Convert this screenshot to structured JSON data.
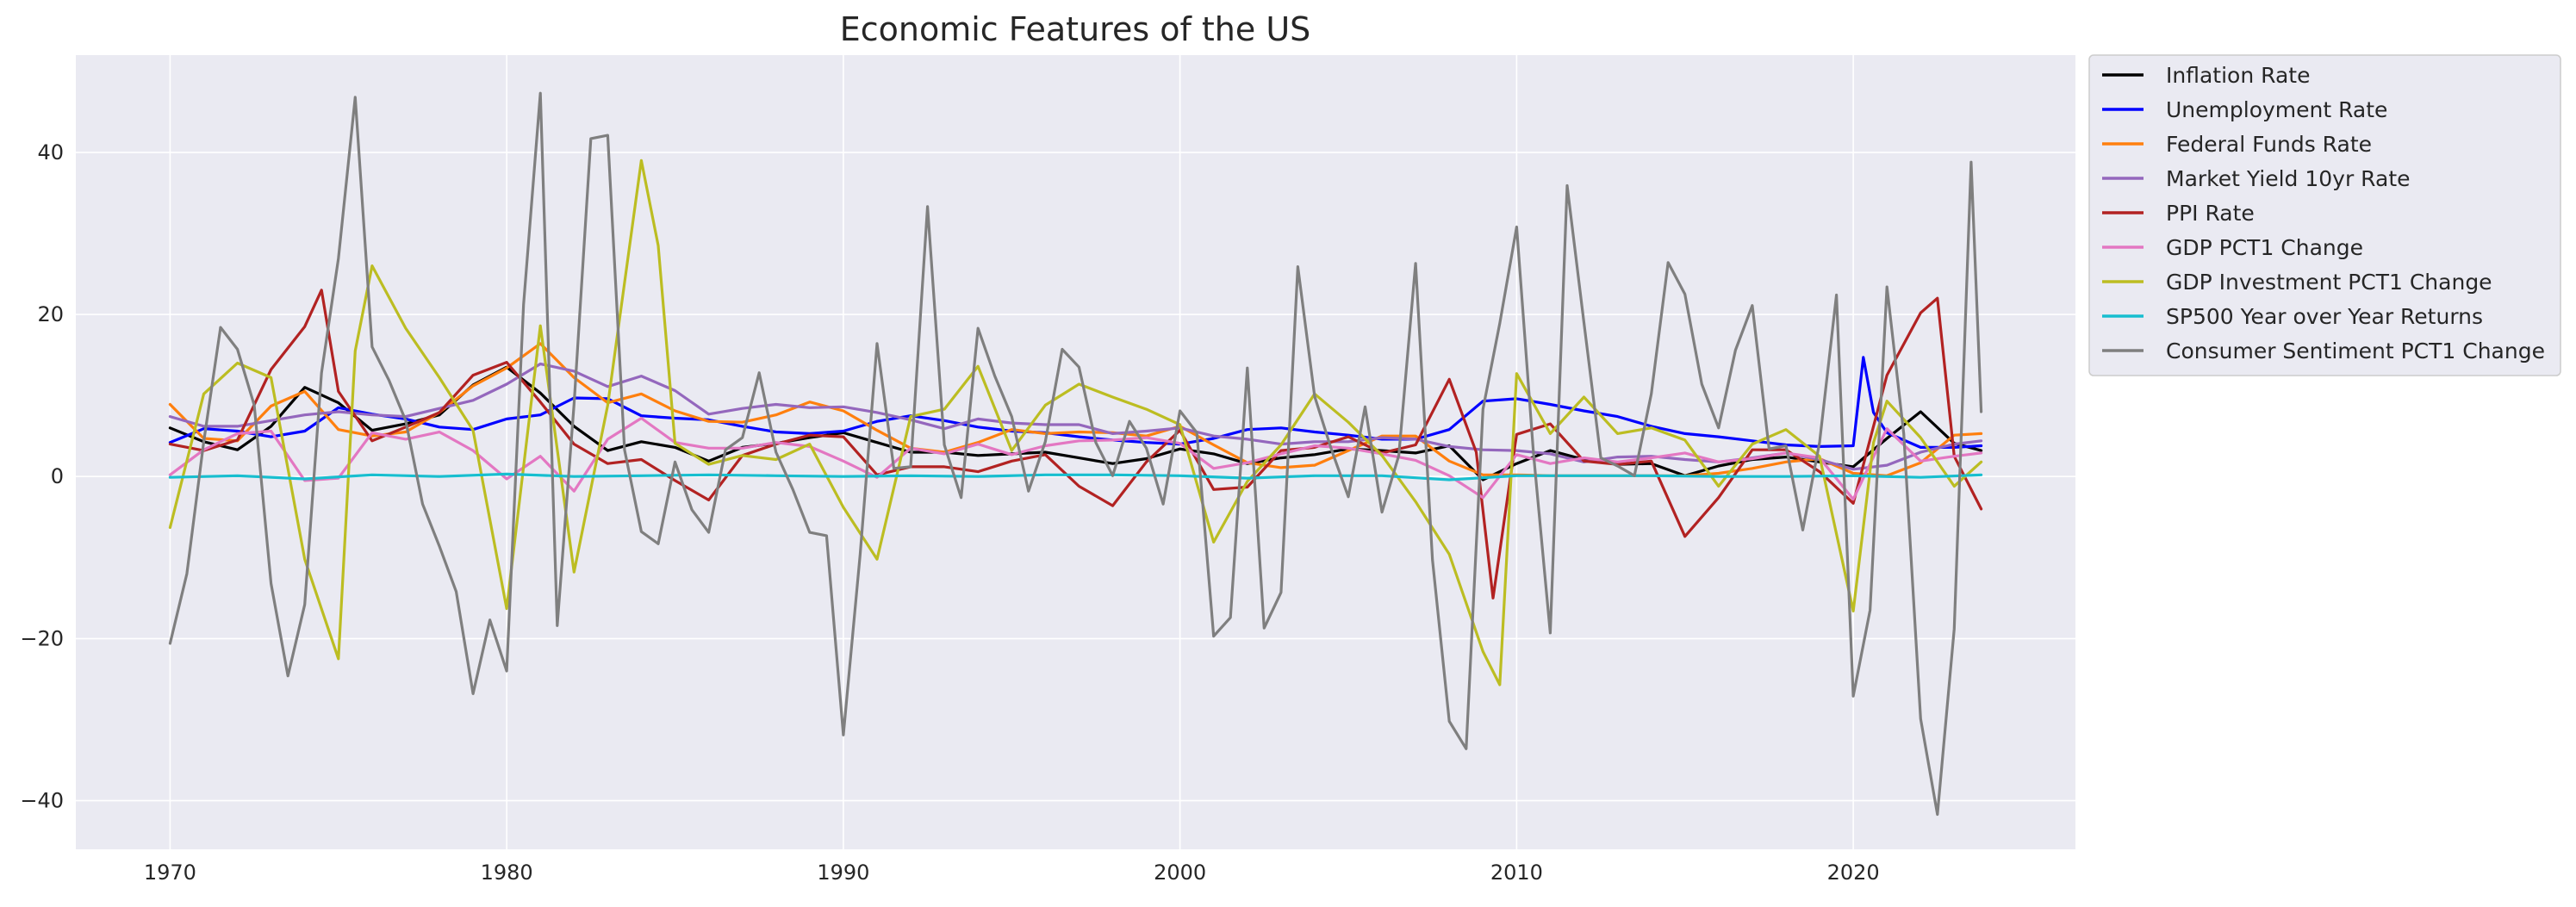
{
  "chart_data": {
    "type": "line",
    "title": "Economic Features of the US",
    "xlabel": "",
    "ylabel": "",
    "xlim": [
      1967.2,
      2026.6
    ],
    "ylim": [
      -46,
      52
    ],
    "xticks": [
      1970,
      1980,
      1990,
      2000,
      2010,
      2020
    ],
    "xtick_labels": [
      "1970",
      "1980",
      "1990",
      "2000",
      "2010",
      "2020"
    ],
    "yticks": [
      -40,
      -20,
      0,
      20,
      40
    ],
    "ytick_labels": [
      "−40",
      "−20",
      "0",
      "20",
      "40"
    ],
    "grid": true,
    "legend_position": "outside-right-top",
    "series": [
      {
        "name": "Inflation Rate",
        "color": "#000000",
        "x": [
          1970,
          1971,
          1972,
          1973,
          1974,
          1975,
          1976,
          1977,
          1978,
          1979,
          1980,
          1981,
          1982,
          1983,
          1984,
          1985,
          1986,
          1987,
          1988,
          1989,
          1990,
          1991,
          1992,
          1993,
          1994,
          1995,
          1996,
          1997,
          1998,
          1999,
          2000,
          2001,
          2002,
          2003,
          2004,
          2005,
          2006,
          2007,
          2008,
          2009,
          2010,
          2011,
          2012,
          2013,
          2014,
          2015,
          2016,
          2017,
          2018,
          2019,
          2020,
          2021,
          2022,
          2023,
          2023.8
        ],
        "values": [
          6,
          4.3,
          3.3,
          6.2,
          11,
          9.1,
          5.7,
          6.5,
          7.6,
          11.3,
          13.5,
          10.3,
          6.2,
          3.2,
          4.3,
          3.6,
          1.9,
          3.6,
          4.1,
          4.8,
          5.4,
          4.2,
          3,
          3,
          2.6,
          2.8,
          3,
          2.3,
          1.6,
          2.2,
          3.4,
          2.8,
          1.6,
          2.3,
          2.7,
          3.4,
          3.2,
          2.9,
          3.8,
          -0.4,
          1.6,
          3.2,
          2.1,
          1.5,
          1.6,
          0.1,
          1.3,
          2.1,
          2.4,
          1.8,
          1.2,
          4.7,
          8,
          4.1,
          3.2
        ]
      },
      {
        "name": "Unemployment Rate",
        "color": "#0000ff",
        "x": [
          1970,
          1971,
          1972,
          1973,
          1974,
          1975,
          1976,
          1977,
          1978,
          1979,
          1980,
          1981,
          1982,
          1983,
          1984,
          1985,
          1986,
          1987,
          1988,
          1989,
          1990,
          1991,
          1992,
          1993,
          1994,
          1995,
          1996,
          1997,
          1998,
          1999,
          2000,
          2001,
          2002,
          2003,
          2004,
          2005,
          2006,
          2007,
          2008,
          2009,
          2010,
          2011,
          2012,
          2013,
          2014,
          2015,
          2016,
          2017,
          2018,
          2019,
          2020,
          2020.3,
          2020.6,
          2021,
          2022,
          2023,
          2023.8
        ],
        "values": [
          4.2,
          5.9,
          5.6,
          4.9,
          5.6,
          8.5,
          7.7,
          7.1,
          6.1,
          5.8,
          7.1,
          7.6,
          9.7,
          9.6,
          7.5,
          7.2,
          7,
          6.2,
          5.5,
          5.3,
          5.6,
          6.8,
          7.5,
          6.9,
          6.1,
          5.6,
          5.4,
          4.9,
          4.5,
          4.2,
          4,
          4.7,
          5.8,
          6,
          5.5,
          5.1,
          4.6,
          4.6,
          5.8,
          9.3,
          9.6,
          8.9,
          8.1,
          7.4,
          6.2,
          5.3,
          4.9,
          4.4,
          3.9,
          3.7,
          3.8,
          14.7,
          7.9,
          5.4,
          3.6,
          3.6,
          3.8
        ]
      },
      {
        "name": "Federal Funds Rate",
        "color": "#ff7f0e",
        "x": [
          1970,
          1971,
          1972,
          1973,
          1974,
          1975,
          1976,
          1977,
          1978,
          1979,
          1980,
          1981,
          1982,
          1983,
          1984,
          1985,
          1986,
          1987,
          1988,
          1989,
          1990,
          1991,
          1992,
          1993,
          1994,
          1995,
          1996,
          1997,
          1998,
          1999,
          2000,
          2001,
          2002,
          2003,
          2004,
          2005,
          2006,
          2007,
          2008,
          2009,
          2010,
          2011,
          2012,
          2013,
          2014,
          2015,
          2016,
          2017,
          2018,
          2019,
          2020,
          2021,
          2022,
          2023,
          2023.8
        ],
        "values": [
          8.9,
          4.7,
          4.4,
          8.7,
          10.5,
          5.8,
          5,
          5.5,
          7.9,
          11.2,
          13.4,
          16.4,
          12.2,
          9.1,
          10.2,
          8.1,
          6.8,
          6.7,
          7.6,
          9.2,
          8.1,
          5.7,
          3.5,
          3,
          4.2,
          5.8,
          5.3,
          5.5,
          5.4,
          5,
          6.2,
          3.9,
          1.7,
          1.1,
          1.4,
          3.2,
          5,
          5,
          1.9,
          0.2,
          0.2,
          0.1,
          0.1,
          0.1,
          0.1,
          0.1,
          0.4,
          1,
          1.8,
          2.2,
          0.4,
          0.1,
          1.7,
          5.1,
          5.3
        ]
      },
      {
        "name": "Market Yield 10yr Rate",
        "color": "#9467bd",
        "x": [
          1970,
          1971,
          1972,
          1973,
          1974,
          1975,
          1976,
          1977,
          1978,
          1979,
          1980,
          1981,
          1982,
          1983,
          1984,
          1985,
          1986,
          1987,
          1988,
          1989,
          1990,
          1991,
          1992,
          1993,
          1994,
          1995,
          1996,
          1997,
          1998,
          1999,
          2000,
          2001,
          2002,
          2003,
          2004,
          2005,
          2006,
          2007,
          2008,
          2009,
          2010,
          2011,
          2012,
          2013,
          2014,
          2015,
          2016,
          2017,
          2018,
          2019,
          2020,
          2021,
          2022,
          2023,
          2023.8
        ],
        "values": [
          7.4,
          6.2,
          6.2,
          6.9,
          7.6,
          8,
          7.6,
          7.4,
          8.4,
          9.4,
          11.4,
          13.9,
          13,
          11.1,
          12.4,
          10.6,
          7.7,
          8.4,
          8.9,
          8.5,
          8.6,
          7.9,
          7,
          5.9,
          7.1,
          6.6,
          6.4,
          6.4,
          5.3,
          5.6,
          6,
          5,
          4.6,
          4,
          4.3,
          4.3,
          4.8,
          4.6,
          3.7,
          3.3,
          3.2,
          2.8,
          1.8,
          2.4,
          2.5,
          2.1,
          1.8,
          2.3,
          2.9,
          2.1,
          0.9,
          1.4,
          3,
          4,
          4.4
        ]
      },
      {
        "name": "PPI Rate",
        "color": "#b22222",
        "x": [
          1970,
          1971,
          1972,
          1973,
          1974,
          1974.5,
          1975,
          1976,
          1977,
          1978,
          1979,
          1980,
          1981,
          1982,
          1983,
          1984,
          1985,
          1986,
          1987,
          1988,
          1989,
          1990,
          1991,
          1992,
          1993,
          1994,
          1995,
          1996,
          1997,
          1998,
          1999,
          2000,
          2001,
          2002,
          2003,
          2004,
          2005,
          2006,
          2007,
          2008,
          2008.8,
          2009.3,
          2010,
          2011,
          2012,
          2013,
          2014,
          2015,
          2016,
          2017,
          2018,
          2019,
          2020,
          2021,
          2022,
          2022.5,
          2023,
          2023.8
        ],
        "values": [
          4,
          3.2,
          4.5,
          13.2,
          18.5,
          23,
          10.5,
          4.4,
          6.1,
          7.9,
          12.5,
          14.1,
          9.2,
          4,
          1.6,
          2.1,
          -0.5,
          -2.9,
          2.6,
          4,
          5.1,
          4.9,
          0.2,
          1.2,
          1.2,
          0.6,
          1.9,
          2.7,
          -1.2,
          -3.6,
          1.8,
          5.7,
          -1.6,
          -1.3,
          3.2,
          3.6,
          4.9,
          2.9,
          3.9,
          12,
          3,
          -15,
          5.2,
          6.5,
          1.9,
          1.5,
          1.9,
          -7.4,
          -2.6,
          3.3,
          3.3,
          0.6,
          -3.3,
          12.5,
          20.2,
          22,
          2.5,
          -4
        ]
      },
      {
        "name": "GDP PCT1 Change",
        "color": "#e377c2",
        "x": [
          1970,
          1971,
          1972,
          1973,
          1974,
          1975,
          1976,
          1977,
          1978,
          1979,
          1980,
          1981,
          1982,
          1983,
          1984,
          1985,
          1986,
          1987,
          1988,
          1989,
          1990,
          1991,
          1992,
          1993,
          1994,
          1995,
          1996,
          1997,
          1998,
          1999,
          2000,
          2001,
          2002,
          2003,
          2004,
          2005,
          2006,
          2007,
          2008,
          2009,
          2010,
          2011,
          2012,
          2013,
          2014,
          2015,
          2016,
          2017,
          2018,
          2019,
          2020,
          2021,
          2022,
          2023,
          2023.8
        ],
        "values": [
          0.2,
          3.3,
          5.3,
          5.6,
          -0.5,
          -0.2,
          5.4,
          4.6,
          5.5,
          3.2,
          -0.3,
          2.5,
          -1.8,
          4.6,
          7.2,
          4.2,
          3.5,
          3.5,
          4.2,
          3.7,
          1.9,
          -0.1,
          3.5,
          2.8,
          4,
          2.7,
          3.8,
          4.4,
          4.5,
          4.8,
          4.1,
          1,
          1.7,
          2.8,
          3.8,
          3.5,
          2.8,
          2,
          0.1,
          -2.6,
          2.7,
          1.6,
          2.3,
          1.8,
          2.3,
          2.9,
          1.8,
          2.2,
          2.9,
          2.3,
          -2.8,
          5.9,
          1.9,
          2.5,
          2.9
        ]
      },
      {
        "name": "GDP Investment PCT1 Change",
        "color": "#bcbd22",
        "x": [
          1970,
          1971,
          1972,
          1973,
          1974,
          1975,
          1975.5,
          1976,
          1977,
          1978,
          1979,
          1980,
          1981,
          1982,
          1983,
          1984,
          1984.5,
          1985,
          1986,
          1987,
          1988,
          1989,
          1990,
          1991,
          1992,
          1993,
          1994,
          1995,
          1996,
          1997,
          1998,
          1999,
          2000,
          2001,
          2002,
          2003,
          2004,
          2005,
          2006,
          2007,
          2008,
          2009,
          2009.5,
          2010,
          2011,
          2012,
          2013,
          2014,
          2015,
          2016,
          2017,
          2018,
          2019,
          2020,
          2020.6,
          2021,
          2022,
          2023,
          2023.8
        ],
        "values": [
          -6.3,
          10.2,
          14,
          12.2,
          -10.2,
          -22.5,
          15.5,
          26,
          18.3,
          12.2,
          5.7,
          -16.3,
          18.6,
          -11.8,
          8.8,
          39,
          28.5,
          4.1,
          1.5,
          2.6,
          2.1,
          4,
          -3.8,
          -10.2,
          7.4,
          8.3,
          13.6,
          3.2,
          8.8,
          11.4,
          9.8,
          8.3,
          6.4,
          -8.1,
          -0.6,
          3.9,
          10.2,
          6.7,
          2.6,
          -3.1,
          -9.6,
          -21.6,
          -25.7,
          12.7,
          5.3,
          9.8,
          5.3,
          6,
          4.5,
          -1.2,
          4,
          5.8,
          2.5,
          -16.6,
          4.2,
          9.3,
          4.8,
          -1.2,
          1.8
        ]
      },
      {
        "name": "SP500 Year over Year Returns",
        "color": "#17becf",
        "x": [
          1970,
          1972,
          1974,
          1976,
          1978,
          1980,
          1982,
          1984,
          1986,
          1988,
          1990,
          1992,
          1994,
          1996,
          1998,
          2000,
          2002,
          2004,
          2006,
          2008,
          2010,
          2012,
          2014,
          2016,
          2018,
          2020,
          2022,
          2023.8
        ],
        "values": [
          -0.1,
          0.1,
          -0.3,
          0.2,
          0,
          0.3,
          0,
          0.1,
          0.2,
          0.1,
          0,
          0.1,
          0,
          0.2,
          0.2,
          0.1,
          -0.2,
          0.1,
          0.1,
          -0.4,
          0.1,
          0.1,
          0.1,
          0,
          0,
          0.1,
          -0.1,
          0.2
        ]
      },
      {
        "name": "Consumer Sentiment PCT1 Change",
        "color": "#7f7f7f",
        "x": [
          1970,
          1970.5,
          1971,
          1971.5,
          1972,
          1972.5,
          1973,
          1973.5,
          1974,
          1974.5,
          1975,
          1975.5,
          1976,
          1976.5,
          1977,
          1977.5,
          1978,
          1978.5,
          1979,
          1979.5,
          1980,
          1980.5,
          1981,
          1981.5,
          1982,
          1982.5,
          1983,
          1983.5,
          1984,
          1984.5,
          1985,
          1985.5,
          1986,
          1986.5,
          1987,
          1987.5,
          1988,
          1988.5,
          1989,
          1989.5,
          1990,
          1990.5,
          1991,
          1991.5,
          1992,
          1992.5,
          1993,
          1993.5,
          1994,
          1994.5,
          1995,
          1995.5,
          1996,
          1996.5,
          1997,
          1997.5,
          1998,
          1998.5,
          1999,
          1999.5,
          2000,
          2000.5,
          2001,
          2001.5,
          2002,
          2002.5,
          2003,
          2003.5,
          2004,
          2004.5,
          2005,
          2005.5,
          2006,
          2006.5,
          2007,
          2007.5,
          2008,
          2008.5,
          2009,
          2009.5,
          2010,
          2010.5,
          2011,
          2011.5,
          2012,
          2012.5,
          2013,
          2013.5,
          2014,
          2014.5,
          2015,
          2015.5,
          2016,
          2016.5,
          2017,
          2017.5,
          2018,
          2018.5,
          2019,
          2019.5,
          2020,
          2020.5,
          2021,
          2021.5,
          2022,
          2022.5,
          2023,
          2023.5,
          2023.8
        ],
        "values": [
          -20.6,
          -12,
          4.3,
          18.4,
          15.7,
          8.8,
          -13.2,
          -24.6,
          -15.8,
          12.8,
          26.9,
          46.8,
          16,
          11.9,
          6.9,
          -3.4,
          -8.6,
          -14.2,
          -26.8,
          -17.7,
          -24,
          21.2,
          47.3,
          -18.4,
          8.9,
          41.7,
          42.1,
          3.3,
          -6.8,
          -8.3,
          1.8,
          -4.1,
          -6.9,
          3.3,
          4.8,
          12.8,
          3,
          -1.6,
          -6.9,
          -7.3,
          -31.9,
          -9.6,
          16.4,
          1,
          1.2,
          33.3,
          3.9,
          -2.6,
          18.3,
          12.4,
          7.4,
          -1.8,
          4.3,
          15.7,
          13.5,
          4.2,
          0.1,
          6.8,
          3.5,
          -3.4,
          8.1,
          5.4,
          -19.7,
          -17.4,
          13.4,
          -18.7,
          -14.3,
          25.9,
          9.9,
          3.3,
          -2.5,
          8.6,
          -4.4,
          2.6,
          26.3,
          -10.3,
          -30.2,
          -33.6,
          8.3,
          18.9,
          30.8,
          2.9,
          -19.3,
          35.9,
          19,
          2.3,
          1.3,
          0.1,
          10.2,
          26.4,
          22.5,
          11.4,
          6,
          15.6,
          21.1,
          3.4,
          3.8,
          -6.6,
          4.2,
          22.4,
          -27.1,
          -16.5,
          23.4,
          5.3,
          -29.9,
          -41.7,
          -18.8,
          38.8,
          8
        ]
      }
    ]
  }
}
